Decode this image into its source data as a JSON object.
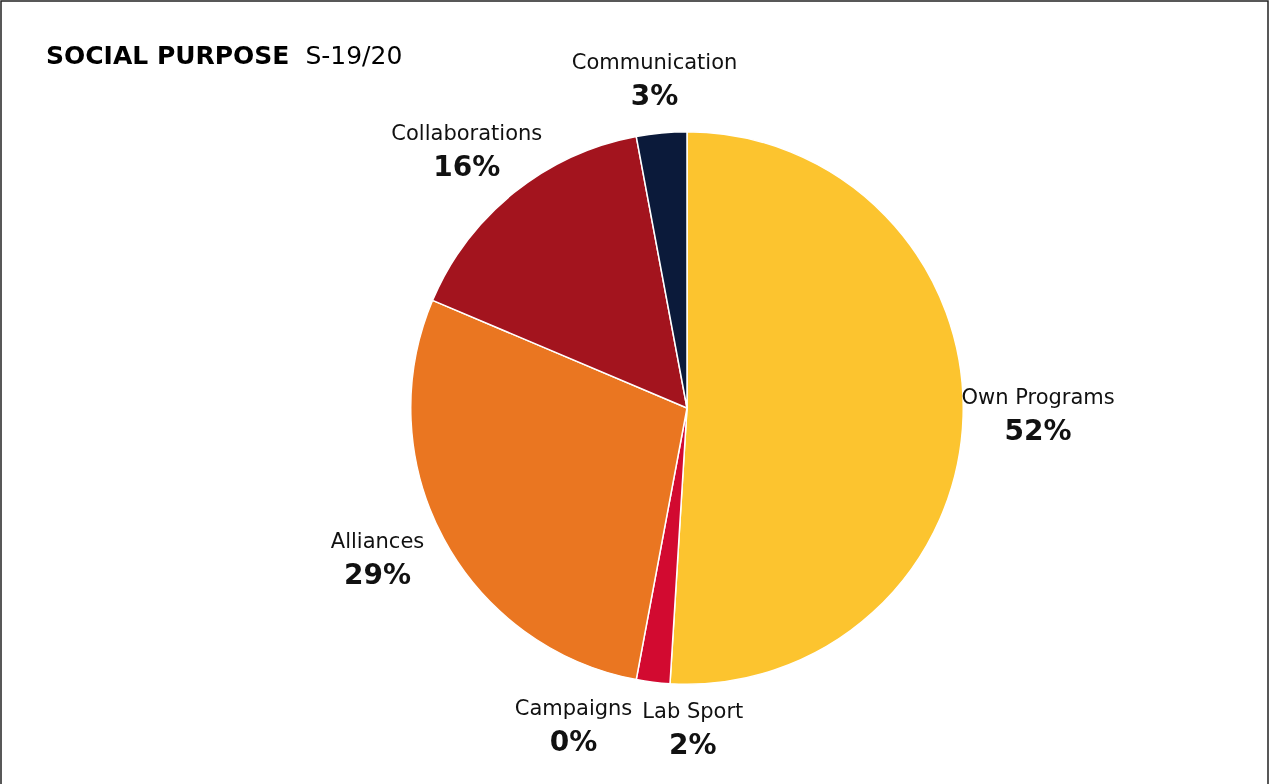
{
  "chart_data": {
    "type": "pie",
    "title": "SOCIAL PURPOSE",
    "subtitle": "S-19/20",
    "categories": [
      "Own Programs",
      "Lab Sport",
      "Campaigns",
      "Alliances",
      "Collaborations",
      "Communication"
    ],
    "values": [
      52,
      2,
      0,
      29,
      16,
      3
    ],
    "value_labels": [
      "52%",
      "2%",
      "0%",
      "29%",
      "16%",
      "3%"
    ],
    "colors": [
      "#fcc42f",
      "#d20a30",
      "#ffffff",
      "#ea7621",
      "#a3141e",
      "#0b1a3a"
    ],
    "legend": false
  }
}
